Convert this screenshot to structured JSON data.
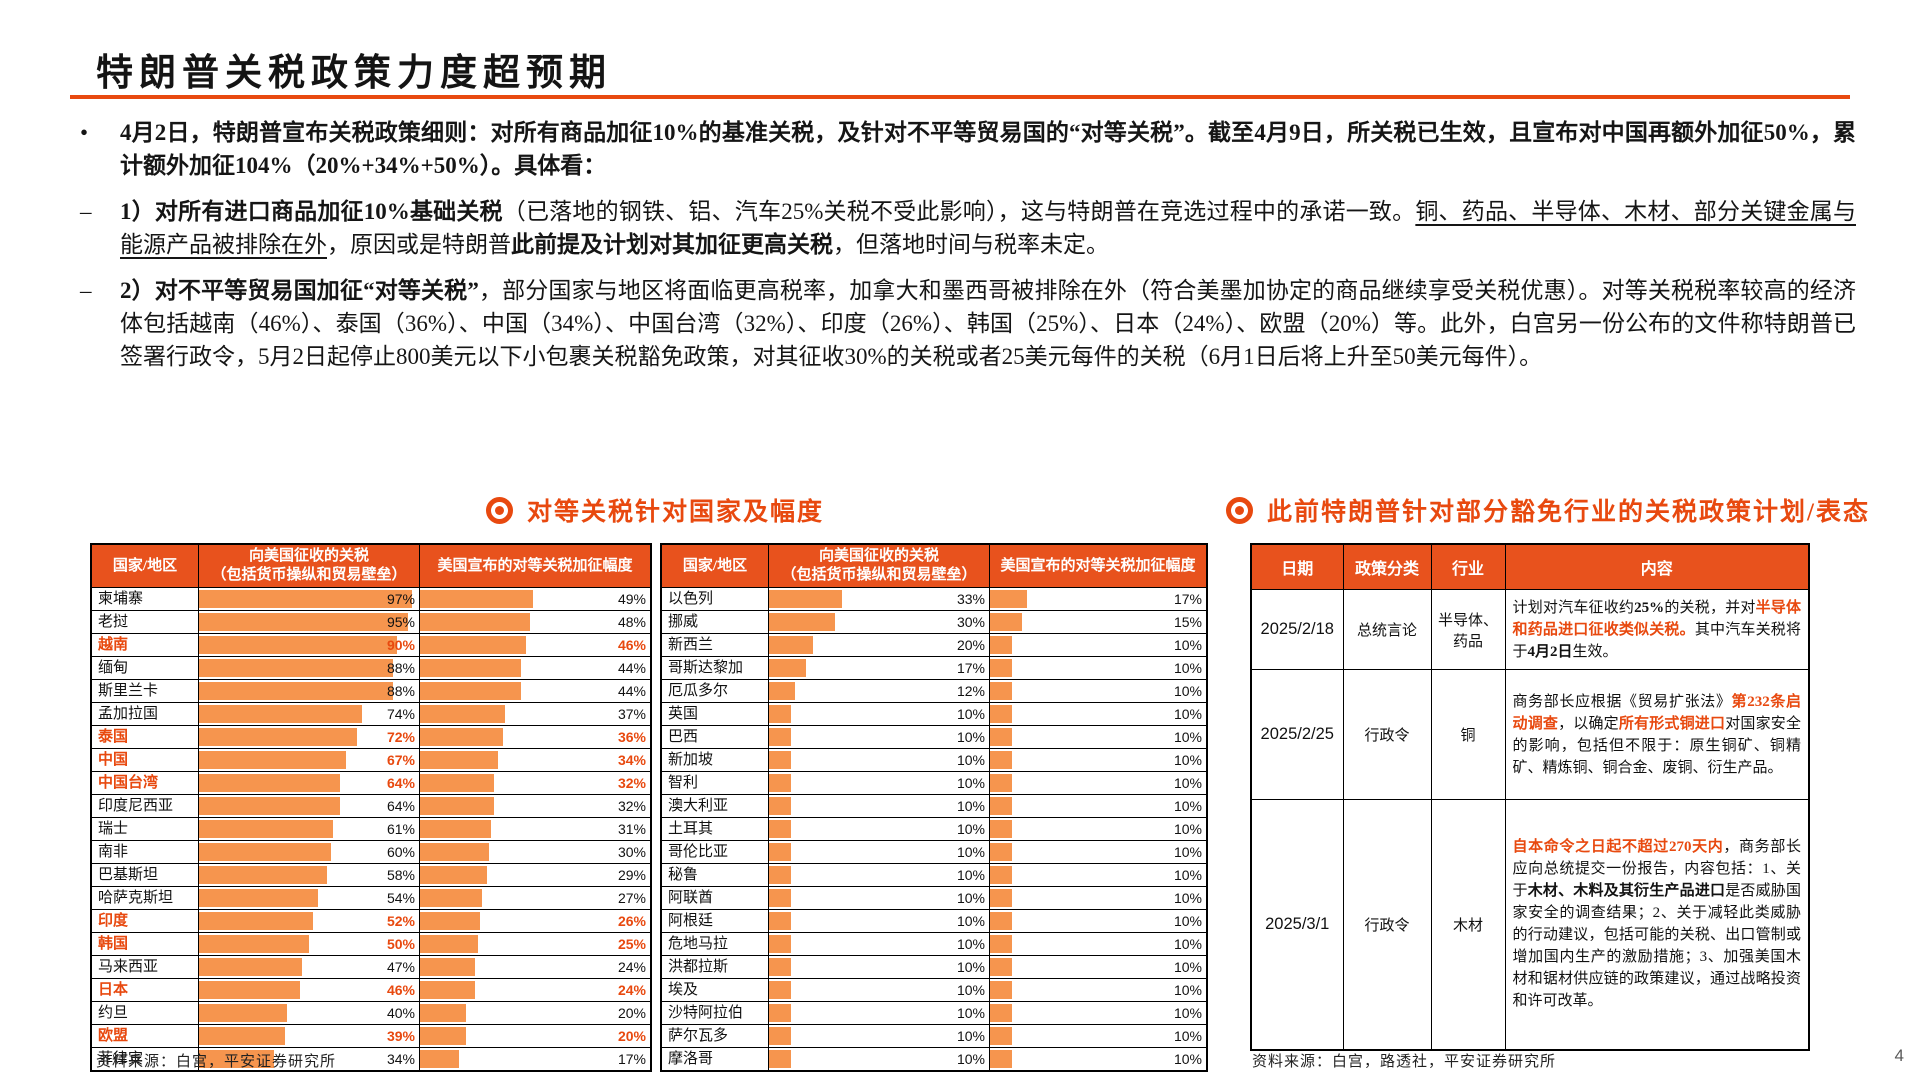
{
  "title": "特朗普关税政策力度超预期",
  "colors": {
    "accent": "#E8490F",
    "table_header_bg": "#E8521D",
    "bar_fill": "#F6954E"
  },
  "bullets": [
    {
      "marker": "•",
      "segments": [
        {
          "text": "4月2日，特朗普宣布关税政策细则：对所有商品加征10%的基准关税，及针对不平等贸易国的“对等关税”。截至4月9日，所关税已生效，且宣布对中国再额外加征50%，累计额外加征104%（20%+34%+50%）。具体看：",
          "style": "b"
        }
      ]
    },
    {
      "marker": "–",
      "segments": [
        {
          "text": "1）对所有进口商品加征10%基础关税",
          "style": "b"
        },
        {
          "text": "（已落地的钢铁、铝、汽车25%关税不受此影响），这与特朗普在竞选过程中的承诺一致。",
          "style": "n"
        },
        {
          "text": "铜、药品、半导体、木材、部分关键金属与能源产品被排除在外",
          "style": "u"
        },
        {
          "text": "，原因或是特朗普",
          "style": "n"
        },
        {
          "text": "此前提及计划对其加征更高关税",
          "style": "b"
        },
        {
          "text": "，但落地时间与税率未定。",
          "style": "n"
        }
      ]
    },
    {
      "marker": "–",
      "segments": [
        {
          "text": "2）对不平等贸易国加征“对等关税”",
          "style": "b"
        },
        {
          "text": "，部分国家与地区将面临更高税率，加拿大和墨西哥被排除在外（符合美墨加协定的商品继续享受关税优惠）。对等关税税率较高的经济体包括越南（46%）、泰国（36%）、中国（34%）、中国台湾（32%）、印度（26%）、韩国（25%）、日本（24%）、欧盟（20%）等。此外，白宫另一份公布的文件称特朗普已签署行政令，5月2日起停止800美元以下小包裹关税豁免政策，对其征收30%的关税或者25美元每件的关税（6月1日后将上升至50美元每件）。",
          "style": "n"
        }
      ]
    }
  ],
  "reciprocal_section": {
    "title": "对等关税针对国家及幅度"
  },
  "policy_section": {
    "title": "此前特朗普针对部分豁免行业的关税政策计划/表态"
  },
  "tariff_table_headers": {
    "col1": "国家/地区",
    "col2_line1": "向美国征收的关税",
    "col2_line2": "（包括货币操纵和贸易壁垒）",
    "col3": "美国宣布的对等关税加征幅度"
  },
  "chart_data": [
    {
      "type": "bar",
      "title": "对等关税针对国家及幅度（左表）",
      "categories": [
        "柬埔寨",
        "老挝",
        "越南",
        "缅甸",
        "斯里兰卡",
        "孟加拉国",
        "泰国",
        "中国",
        "中国台湾",
        "印度尼西亚",
        "瑞士",
        "南非",
        "巴基斯坦",
        "哈萨克斯坦",
        "印度",
        "韩国",
        "马来西亚",
        "日本",
        "约旦",
        "欧盟",
        "菲律宾"
      ],
      "series": [
        {
          "name": "向美国征收的关税（包括货币操纵和贸易壁垒）",
          "values": [
            97,
            95,
            90,
            88,
            88,
            74,
            72,
            67,
            64,
            64,
            61,
            60,
            58,
            54,
            52,
            50,
            47,
            46,
            40,
            39,
            34
          ]
        },
        {
          "name": "美国宣布的对等关税加征幅度",
          "values": [
            49,
            48,
            46,
            44,
            44,
            37,
            36,
            34,
            32,
            32,
            31,
            30,
            29,
            27,
            26,
            25,
            24,
            24,
            20,
            20,
            17
          ]
        }
      ],
      "highlighted_categories": [
        "越南",
        "泰国",
        "中国",
        "中国台湾",
        "印度",
        "韩国",
        "日本",
        "欧盟"
      ],
      "xlim": [
        0,
        100
      ],
      "unit": "%"
    },
    {
      "type": "bar",
      "title": "对等关税针对国家及幅度（右表）",
      "categories": [
        "以色列",
        "挪威",
        "新西兰",
        "哥斯达黎加",
        "厄瓜多尔",
        "英国",
        "巴西",
        "新加坡",
        "智利",
        "澳大利亚",
        "土耳其",
        "哥伦比亚",
        "秘鲁",
        "阿联酋",
        "阿根廷",
        "危地马拉",
        "洪都拉斯",
        "埃及",
        "沙特阿拉伯",
        "萨尔瓦多",
        "摩洛哥"
      ],
      "series": [
        {
          "name": "向美国征收的关税（包括货币操纵和贸易壁垒）",
          "values": [
            33,
            30,
            20,
            17,
            12,
            10,
            10,
            10,
            10,
            10,
            10,
            10,
            10,
            10,
            10,
            10,
            10,
            10,
            10,
            10,
            10
          ]
        },
        {
          "name": "美国宣布的对等关税加征幅度",
          "values": [
            17,
            15,
            10,
            10,
            10,
            10,
            10,
            10,
            10,
            10,
            10,
            10,
            10,
            10,
            10,
            10,
            10,
            10,
            10,
            10,
            10
          ]
        }
      ],
      "highlighted_categories": [],
      "xlim": [
        0,
        100
      ],
      "unit": "%"
    }
  ],
  "policy_table": {
    "headers": [
      "日期",
      "政策分类",
      "行业",
      "内容"
    ],
    "rows": [
      {
        "date": "2025/2/18",
        "category": "总统言论",
        "industry": "半导体、药品",
        "content": [
          {
            "text": "计划对汽车征收约",
            "style": "n"
          },
          {
            "text": "25%",
            "style": "b"
          },
          {
            "text": "的关税，并对",
            "style": "n"
          },
          {
            "text": "半导体和药品进口征收类似关税。",
            "style": "ob"
          },
          {
            "text": "其中汽车关税将于",
            "style": "n"
          },
          {
            "text": "4月2日",
            "style": "b"
          },
          {
            "text": "生效。",
            "style": "n"
          }
        ]
      },
      {
        "date": "2025/2/25",
        "category": "行政令",
        "industry": "铜",
        "content": [
          {
            "text": "商务部长应根据《贸易扩张法》",
            "style": "n"
          },
          {
            "text": "第232条启动调查",
            "style": "ob"
          },
          {
            "text": "，以确定",
            "style": "n"
          },
          {
            "text": "所有形式铜进口",
            "style": "ob"
          },
          {
            "text": "对国家安全的影响，包括但不限于：原生铜矿、铜精矿、精炼铜、铜合金、废铜、衍生产品。",
            "style": "n"
          }
        ]
      },
      {
        "date": "2025/3/1",
        "category": "行政令",
        "industry": "木材",
        "content": [
          {
            "text": "自本命令之日起不超过270天内",
            "style": "ob"
          },
          {
            "text": "，商务部长应向总统提交一份报告，内容包括：1、关于",
            "style": "n"
          },
          {
            "text": "木材、木料及其衍生产品进口",
            "style": "b"
          },
          {
            "text": "是否威胁国家安全的调查结果；2、关于减轻此类威胁的行动建议，包括可能的关税、出口管制或增加国内生产的激励措施；3、加强美国木材和锯材供应链的政策建议，通过战略投资和许可改革。",
            "style": "n"
          }
        ]
      }
    ]
  },
  "sources": {
    "left": "资料来源：白宫，平安证券研究所",
    "right": "资料来源：白宫，路透社，平安证券研究所"
  },
  "page_number": "4"
}
